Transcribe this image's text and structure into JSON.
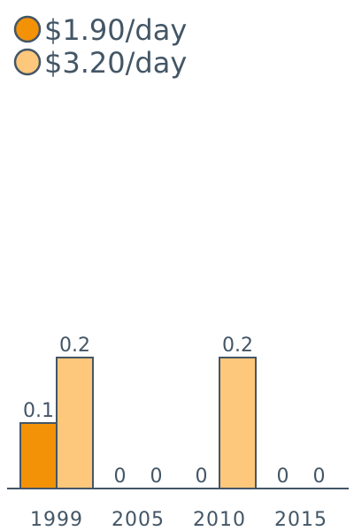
{
  "chart_data": {
    "type": "bar",
    "categories": [
      "1999",
      "2005",
      "2010",
      "2015"
    ],
    "series": [
      {
        "name": "$1.90/day",
        "values": [
          0.1,
          0,
          0,
          0
        ],
        "color": "#f39207"
      },
      {
        "name": "$3.20/day",
        "values": [
          0.2,
          0,
          0.2,
          0
        ],
        "color": "#fdc77c"
      }
    ],
    "data_labels": [
      [
        "0.1",
        "0",
        "0",
        "0"
      ],
      [
        "0.2",
        "0",
        "0.2",
        "0"
      ]
    ],
    "title": "",
    "xlabel": "",
    "ylabel": "",
    "ylim": [
      0,
      0.7
    ],
    "grid": false,
    "legend_position": "top-left",
    "colors": {
      "text": "#435666",
      "outline": "#435666",
      "axis": "#435666"
    }
  }
}
